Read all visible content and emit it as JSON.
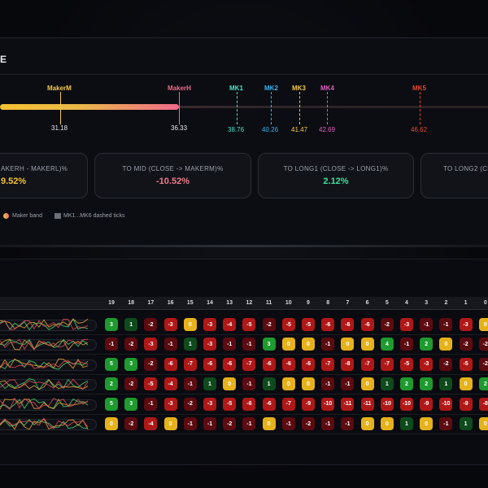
{
  "panel": {
    "title": "E"
  },
  "markers": [
    {
      "name": "MakerM",
      "value": "31.18",
      "color": "#f2c84b"
    },
    {
      "name": "MakerH",
      "value": "36.33",
      "color": "#f06a8a"
    },
    {
      "name": "MK1",
      "value": "38.76",
      "color": "#4ee0c8"
    },
    {
      "name": "MK2",
      "value": "40.26",
      "color": "#3bb3f0"
    },
    {
      "name": "MK3",
      "value": "41.47",
      "color": "#f2c84b"
    },
    {
      "name": "MK4",
      "value": "42.69",
      "color": "#e05ec0"
    },
    {
      "name": "MK5",
      "value": "46.62",
      "color": "#e24a32"
    }
  ],
  "cards": [
    {
      "label": "AKERH - MAKERL)%",
      "value": "9.52%",
      "color": "#f4c232"
    },
    {
      "label": "TO MID (CLOSE -> MAKERM)%",
      "value": "-10.52%",
      "color": "#f07a8a"
    },
    {
      "label": "TO LONG1 (CLOSE -> LONG1)%",
      "value": "2.12%",
      "color": "#3ee09a"
    },
    {
      "label": "TO LONG2 (CL",
      "value": "",
      "color": "#f07a8a"
    }
  ],
  "legend": {
    "band": "Maker band",
    "ticks": "MK1...MK6 dashed ticks"
  },
  "table": {
    "columns": [
      "19",
      "18",
      "17",
      "16",
      "15",
      "14",
      "13",
      "12",
      "11",
      "10",
      "9",
      "8",
      "7",
      "6",
      "5",
      "4",
      "3",
      "2",
      "1",
      "0"
    ],
    "rows": [
      [
        "3",
        "1",
        "-2",
        "-3",
        "0",
        "-3",
        "-4",
        "-5",
        "-2",
        "-5",
        "-5",
        "-6",
        "-6",
        "-6",
        "-2",
        "-3",
        "-1",
        "-1",
        "-3",
        "0"
      ],
      [
        "-1",
        "-2",
        "-3",
        "-1",
        "1",
        "-3",
        "-1",
        "-1",
        "3",
        "0",
        "0",
        "-1",
        "0",
        "0",
        "4",
        "-1",
        "2",
        "0",
        "-2",
        "-2"
      ],
      [
        "5",
        "3",
        "-2",
        "-6",
        "-7",
        "-6",
        "-6",
        "-7",
        "-6",
        "-6",
        "-6",
        "-7",
        "-8",
        "-7",
        "-7",
        "-5",
        "-3",
        "-2",
        "-5",
        "-2"
      ],
      [
        "2",
        "-2",
        "-5",
        "-4",
        "-1",
        "1",
        "0",
        "-1",
        "1",
        "0",
        "0",
        "-1",
        "-1",
        "0",
        "1",
        "2",
        "2",
        "1",
        "0",
        "2"
      ],
      [
        "5",
        "3",
        "-1",
        "-3",
        "-2",
        "-3",
        "-5",
        "-6",
        "-6",
        "-7",
        "-9",
        "-10",
        "-11",
        "-11",
        "-10",
        "-10",
        "-9",
        "-10",
        "-9",
        "-8"
      ],
      [
        "0",
        "-2",
        "-4",
        "0",
        "-1",
        "-1",
        "-2",
        "-1",
        "0",
        "-1",
        "-2",
        "-1",
        "-1",
        "0",
        "0",
        "1",
        "0",
        "-1",
        "1",
        "0"
      ]
    ]
  },
  "colors": {
    "pos": "#1e9a2e",
    "zero": "#e6b21c",
    "neg": "#b01818",
    "neg_deep": "#5c0b10",
    "pos_dim": "#0f4a1c"
  }
}
